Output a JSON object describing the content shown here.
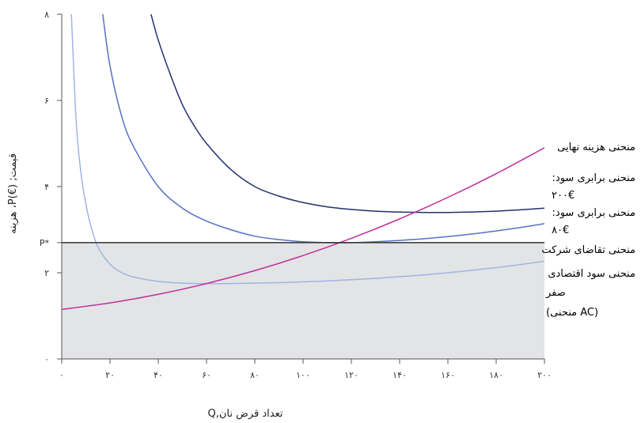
{
  "chart_data": {
    "type": "line",
    "xlabel": "Q,تعداد قرض نان",
    "ylabel": "هزینه ،P(€) ;قیمت",
    "xlim": [
      0,
      200
    ],
    "ylim": [
      0,
      8
    ],
    "x_tick_labels": [
      "۰",
      "۲۰",
      "۴۰",
      "۶۰",
      "۸۰",
      "۱۰۰",
      "۱۲۰",
      "۱۴۰",
      "۱۶۰",
      "۱۸۰",
      "۲۰۰"
    ],
    "x_tick_values": [
      0,
      20,
      40,
      60,
      80,
      100,
      120,
      140,
      160,
      180,
      200
    ],
    "y_tick_labels": [
      "۰",
      "۲",
      "P*",
      "۴",
      "۶",
      "۸"
    ],
    "y_tick_values": [
      0,
      2,
      2.7,
      4,
      6,
      8
    ],
    "p_star": 2.7,
    "shaded_region": {
      "x": [
        0,
        200
      ],
      "y": [
        0,
        2.7
      ],
      "color": "#e3e4e6"
    },
    "series": [
      {
        "name": "منحنی سود اقتصادی صفر (منحنی AC)",
        "color": "#9fb4e3",
        "x": [
          4,
          6,
          8,
          10,
          12,
          15,
          20,
          25,
          30,
          40,
          50,
          60,
          70,
          80,
          90,
          100,
          110,
          120,
          130,
          140,
          150,
          160,
          170,
          180,
          190,
          200
        ],
        "y": [
          8.0,
          5.5,
          4.3,
          3.6,
          3.1,
          2.6,
          2.2,
          2.0,
          1.9,
          1.8,
          1.76,
          1.75,
          1.75,
          1.76,
          1.77,
          1.79,
          1.81,
          1.84,
          1.87,
          1.91,
          1.95,
          2.0,
          2.06,
          2.12,
          2.19,
          2.27
        ]
      },
      {
        "name": "منحنی برابری سود: ۸۰€",
        "color": "#5570c2",
        "x": [
          17,
          20,
          25,
          30,
          40,
          50,
          60,
          70,
          80,
          90,
          100,
          110,
          120,
          130,
          140,
          150,
          160,
          170,
          180,
          190,
          200
        ],
        "y": [
          8.0,
          6.8,
          5.6,
          4.9,
          4.0,
          3.5,
          3.2,
          3.0,
          2.85,
          2.77,
          2.72,
          2.7,
          2.7,
          2.72,
          2.75,
          2.79,
          2.84,
          2.9,
          2.97,
          3.05,
          3.14
        ]
      },
      {
        "name": "منحنی برابری سود: ۲۰۰€",
        "color": "#22306f",
        "x": [
          37,
          40,
          45,
          50,
          55,
          60,
          70,
          80,
          90,
          100,
          110,
          120,
          130,
          140,
          150,
          160,
          170,
          180,
          190,
          200
        ],
        "y": [
          8.0,
          7.4,
          6.6,
          5.9,
          5.4,
          5.0,
          4.4,
          4.0,
          3.78,
          3.63,
          3.53,
          3.47,
          3.43,
          3.41,
          3.4,
          3.4,
          3.41,
          3.43,
          3.46,
          3.5
        ]
      },
      {
        "name": "منحنی هزینه نهایی",
        "color": "#c0309a",
        "x": [
          0,
          20,
          40,
          60,
          80,
          100,
          120,
          140,
          160,
          180,
          200
        ],
        "y": [
          1.15,
          1.3,
          1.5,
          1.75,
          2.05,
          2.4,
          2.8,
          3.25,
          3.75,
          4.3,
          4.9
        ]
      },
      {
        "name": "منحنی تقاضای شرکت",
        "color": "#333333",
        "x": [
          0,
          200
        ],
        "y": [
          2.7,
          2.7
        ]
      }
    ],
    "annotations": [
      {
        "text": "منحنی هزینه نهایی",
        "color": "#c0309a"
      },
      {
        "text": ":منحنی برابری سود",
        "color": "#22306f"
      },
      {
        "text": "۲۰۰€",
        "color": "#22306f"
      },
      {
        "text": ":منحنی برابری سود",
        "color": "#5570c2"
      },
      {
        "text": "۸۰€",
        "color": "#5570c2"
      },
      {
        "text": "منحنی تقاضای شرکت",
        "color": "#222222"
      },
      {
        "text": "منحنی سود اقتصادی",
        "color": "#9fb4e3"
      },
      {
        "text": "صفر",
        "color": "#9fb4e3"
      },
      {
        "text": "(منحنی AC)",
        "color": "#9fb4e3"
      }
    ]
  }
}
